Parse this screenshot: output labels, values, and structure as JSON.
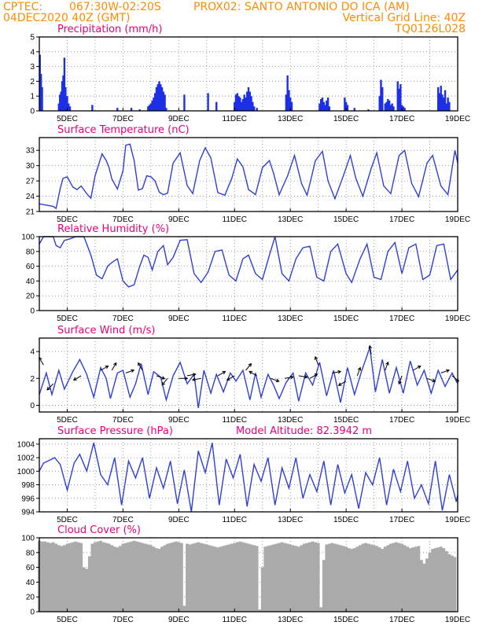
{
  "header": {
    "source": "CPTEC:",
    "coords": "067:30W-02:20S",
    "location": "PROX02: SANTO ANTONIO DO ICA (AM)",
    "run": "04DEC2020 40Z (GMT)",
    "grid_note": "Vertical Grid Line: 40Z",
    "model_code": "TQ0126L028",
    "model_altitude": "Model Altitude: 82.3942 m"
  },
  "x_axis": {
    "ticks": [
      {
        "label": "5DEC",
        "day": 5
      },
      {
        "label": "7DEC",
        "day": 7
      },
      {
        "label": "9DEC",
        "day": 9
      },
      {
        "label": "11DEC",
        "day": 11
      },
      {
        "label": "13DEC",
        "day": 13
      },
      {
        "label": "15DEC",
        "day": 15
      },
      {
        "label": "17DEC",
        "day": 17
      },
      {
        "label": "19DEC",
        "day": 19
      }
    ],
    "xlim": [
      4.0,
      19.0
    ]
  },
  "chart_data": [
    {
      "type": "bar",
      "title": "Precipitation (mm/h)",
      "color": "#1c2ee6",
      "ylim": [
        0,
        5
      ],
      "yticks": [
        0,
        1,
        2,
        3,
        4,
        5
      ],
      "grid": true,
      "x": [
        4.02,
        4.06,
        4.1,
        4.7,
        4.74,
        4.78,
        4.82,
        4.86,
        4.9,
        4.94,
        5.0,
        5.05,
        5.1,
        5.9,
        6.8,
        7.3,
        7.6,
        7.9,
        7.95,
        8.0,
        8.05,
        8.1,
        8.15,
        8.2,
        8.25,
        8.3,
        8.35,
        8.4,
        8.45,
        8.5,
        8.55,
        9.2,
        10.05,
        10.35,
        11.0,
        11.05,
        11.1,
        11.15,
        11.2,
        11.25,
        11.3,
        11.35,
        11.4,
        11.45,
        11.5,
        11.55,
        11.6,
        11.65,
        11.7,
        11.8,
        12.85,
        12.9,
        12.95,
        13.0,
        13.05,
        14.05,
        14.1,
        14.15,
        14.2,
        14.25,
        14.3,
        14.35,
        14.4,
        14.95,
        15.0,
        15.05,
        15.3,
        15.8,
        16.2,
        16.25,
        16.3,
        16.4,
        16.45,
        16.5,
        16.55,
        16.6,
        16.65,
        16.7,
        16.85,
        16.9,
        16.95,
        17.0,
        17.05,
        17.1,
        18.3,
        18.35,
        18.4,
        18.45,
        18.5,
        18.55,
        18.6,
        18.65,
        18.7
      ],
      "values": [
        3.8,
        2.5,
        1.6,
        0.5,
        1.1,
        1.3,
        2.0,
        2.4,
        3.6,
        1.6,
        1.0,
        0.5,
        0.3,
        0.4,
        0.2,
        0.2,
        0.1,
        0.3,
        0.4,
        0.5,
        0.7,
        0.9,
        1.2,
        1.6,
        1.8,
        2.0,
        1.8,
        1.6,
        1.3,
        1.1,
        0.2,
        1.1,
        1.2,
        0.6,
        0.6,
        1.1,
        1.2,
        1.0,
        0.9,
        0.6,
        0.8,
        1.1,
        0.9,
        1.3,
        1.6,
        1.3,
        1.0,
        0.6,
        0.3,
        0.2,
        1.1,
        2.4,
        1.4,
        0.9,
        0.6,
        0.5,
        0.8,
        0.9,
        0.6,
        0.4,
        0.7,
        0.9,
        0.3,
        0.9,
        0.6,
        0.4,
        0.2,
        0.1,
        1.0,
        2.1,
        1.6,
        0.5,
        0.6,
        0.8,
        0.7,
        0.4,
        0.5,
        0.3,
        2.0,
        1.5,
        1.8,
        0.4,
        0.3,
        0.2,
        1.6,
        1.2,
        1.7,
        1.1,
        0.9,
        1.4,
        0.5,
        0.9,
        0.6
      ]
    },
    {
      "type": "line",
      "title": "Surface Temperature (nC)",
      "color": "#2e3fd6",
      "ylim": [
        21,
        35.5
      ],
      "yticks": [
        21,
        24,
        27,
        30,
        33
      ],
      "grid": true,
      "x": [
        4.0,
        4.3,
        4.5,
        4.6,
        4.75,
        4.85,
        5.0,
        5.2,
        5.35,
        5.5,
        5.7,
        5.85,
        6.0,
        6.25,
        6.4,
        6.5,
        6.6,
        6.8,
        7.0,
        7.1,
        7.25,
        7.4,
        7.55,
        7.7,
        7.85,
        8.0,
        8.15,
        8.3,
        8.45,
        8.6,
        8.8,
        9.05,
        9.3,
        9.5,
        9.75,
        9.95,
        10.15,
        10.4,
        10.65,
        10.9,
        11.1,
        11.3,
        11.5,
        11.75,
        12.0,
        12.25,
        12.4,
        12.6,
        12.9,
        13.15,
        13.4,
        13.6,
        13.9,
        14.15,
        14.35,
        14.6,
        14.9,
        15.15,
        15.35,
        15.6,
        15.9,
        16.1,
        16.35,
        16.6,
        16.9,
        17.1,
        17.35,
        17.6,
        17.9,
        18.1,
        18.4,
        18.65,
        18.9,
        19.0
      ],
      "values": [
        22.5,
        22.2,
        22.0,
        21.6,
        25.5,
        27.5,
        27.8,
        25.8,
        25.3,
        26.0,
        24.5,
        23.6,
        28.0,
        32.3,
        31.0,
        29.6,
        27.4,
        25.4,
        29.0,
        34.0,
        34.2,
        31.0,
        25.2,
        25.5,
        28.0,
        27.8,
        27.0,
        24.8,
        24.3,
        24.6,
        30.5,
        32.5,
        26.1,
        24.5,
        31.0,
        33.5,
        31.5,
        24.7,
        24.2,
        27.5,
        31.3,
        29.8,
        25.3,
        24.3,
        29.6,
        31.0,
        28.5,
        24.3,
        28.0,
        32.0,
        26.5,
        24.2,
        31.0,
        32.8,
        27.0,
        23.5,
        28.0,
        32.0,
        27.5,
        24.0,
        29.5,
        32.5,
        26.0,
        24.5,
        32.0,
        33.0,
        26.5,
        23.9,
        30.5,
        32.0,
        26.0,
        24.3,
        33.0,
        30.5
      ]
    },
    {
      "type": "line",
      "title": "Relative Humidity (%)",
      "color": "#2e3fd6",
      "ylim": [
        0,
        100
      ],
      "yticks": [
        0,
        20,
        40,
        60,
        80,
        100
      ],
      "grid": true,
      "x": [
        4.0,
        4.15,
        4.3,
        4.5,
        4.6,
        4.75,
        4.9,
        5.1,
        5.3,
        5.6,
        5.85,
        6.05,
        6.25,
        6.45,
        6.6,
        6.8,
        7.0,
        7.2,
        7.4,
        7.6,
        7.75,
        7.9,
        8.05,
        8.25,
        8.45,
        8.6,
        8.8,
        9.05,
        9.3,
        9.55,
        9.8,
        10.05,
        10.3,
        10.55,
        10.8,
        11.05,
        11.3,
        11.5,
        11.75,
        12.0,
        12.25,
        12.45,
        12.7,
        12.95,
        13.2,
        13.45,
        13.7,
        13.95,
        14.2,
        14.45,
        14.7,
        15.0,
        15.2,
        15.5,
        15.75,
        16.0,
        16.25,
        16.5,
        16.75,
        17.0,
        17.25,
        17.5,
        17.75,
        18.0,
        18.25,
        18.5,
        18.75,
        19.0
      ],
      "values": [
        90,
        100,
        100,
        100,
        88,
        85,
        95,
        97,
        100,
        100,
        75,
        48,
        43,
        60,
        65,
        70,
        40,
        32,
        35,
        60,
        75,
        72,
        55,
        80,
        88,
        62,
        72,
        95,
        96,
        50,
        38,
        52,
        80,
        82,
        48,
        40,
        70,
        75,
        50,
        42,
        75,
        100,
        50,
        40,
        70,
        85,
        87,
        45,
        40,
        80,
        90,
        50,
        38,
        70,
        90,
        45,
        42,
        80,
        92,
        50,
        85,
        90,
        42,
        48,
        88,
        90,
        42,
        55
      ]
    },
    {
      "type": "line",
      "title": "Surface Wind (m/s)",
      "color": "#2e3fd6",
      "ylim": [
        -0.5,
        5
      ],
      "yticks": [
        0,
        2,
        4
      ],
      "grid": true,
      "x": [
        4.0,
        4.25,
        4.45,
        4.7,
        4.9,
        5.2,
        5.45,
        5.7,
        5.95,
        6.2,
        6.4,
        6.55,
        6.8,
        7.0,
        7.25,
        7.45,
        7.65,
        7.9,
        8.1,
        8.35,
        8.55,
        8.8,
        9.05,
        9.3,
        9.55,
        9.7,
        9.9,
        10.15,
        10.35,
        10.6,
        10.85,
        11.05,
        11.3,
        11.55,
        11.75,
        11.95,
        12.2,
        12.4,
        12.6,
        12.85,
        13.1,
        13.3,
        13.55,
        13.8,
        14.05,
        14.3,
        14.55,
        14.8,
        15.05,
        15.3,
        15.55,
        15.85,
        16.05,
        16.3,
        16.55,
        16.8,
        17.05,
        17.3,
        17.55,
        17.8,
        18.05,
        18.3,
        18.55,
        18.8,
        19.0
      ],
      "values": [
        0.8,
        2.4,
        0.8,
        2.6,
        1.2,
        2.5,
        3.4,
        2.3,
        0.6,
        2.8,
        2.0,
        0.5,
        2.4,
        2.6,
        0.6,
        1.6,
        3.1,
        0.8,
        2.5,
        2.1,
        0.4,
        2.2,
        3.2,
        1.6,
        2.3,
        -0.2,
        2.6,
        0.9,
        2.3,
        1.0,
        2.4,
        1.8,
        2.6,
        0.4,
        2.4,
        0.6,
        2.3,
        1.5,
        0.5,
        1.7,
        2.4,
        0.3,
        2.4,
        1.5,
        3.2,
        0.7,
        2.6,
        0.2,
        2.8,
        0.8,
        2.5,
        4.3,
        1.0,
        3.4,
        0.9,
        2.8,
        0.9,
        3.3,
        1.5,
        2.6,
        0.9,
        2.6,
        1.4,
        2.4,
        1.6
      ],
      "vectors": [
        {
          "x": 4.15,
          "speed": 3.0,
          "to_deg": 330
        },
        {
          "x": 4.5,
          "speed": 1.6,
          "to_deg": 225
        },
        {
          "x": 5.5,
          "speed": 2.2,
          "to_deg": 240
        },
        {
          "x": 6.2,
          "speed": 2.6,
          "to_deg": 60
        },
        {
          "x": 6.6,
          "speed": 2.6,
          "to_deg": 30
        },
        {
          "x": 7.1,
          "speed": 2.4,
          "to_deg": 70
        },
        {
          "x": 7.7,
          "speed": 2.6,
          "to_deg": 330
        },
        {
          "x": 8.2,
          "speed": 2.2,
          "to_deg": 110
        },
        {
          "x": 8.6,
          "speed": 2.0,
          "to_deg": 220
        },
        {
          "x": 9.0,
          "speed": 2.0,
          "to_deg": 90
        },
        {
          "x": 9.3,
          "speed": 2.2,
          "to_deg": 80
        },
        {
          "x": 9.8,
          "speed": 2.0,
          "to_deg": 260
        },
        {
          "x": 10.4,
          "speed": 2.2,
          "to_deg": 60
        },
        {
          "x": 11.0,
          "speed": 2.2,
          "to_deg": 240
        },
        {
          "x": 11.4,
          "speed": 2.6,
          "to_deg": 40
        },
        {
          "x": 11.8,
          "speed": 2.2,
          "to_deg": 300
        },
        {
          "x": 12.3,
          "speed": 2.0,
          "to_deg": 110
        },
        {
          "x": 12.8,
          "speed": 2.0,
          "to_deg": 80
        },
        {
          "x": 13.3,
          "speed": 2.2,
          "to_deg": 100
        },
        {
          "x": 13.7,
          "speed": 2.0,
          "to_deg": 60
        },
        {
          "x": 14.0,
          "speed": 3.0,
          "to_deg": 340
        },
        {
          "x": 14.5,
          "speed": 2.4,
          "to_deg": 80
        },
        {
          "x": 15.0,
          "speed": 1.8,
          "to_deg": 240
        },
        {
          "x": 15.4,
          "speed": 2.2,
          "to_deg": 20
        },
        {
          "x": 15.9,
          "speed": 3.8,
          "to_deg": 350
        },
        {
          "x": 16.4,
          "speed": 2.6,
          "to_deg": 20
        },
        {
          "x": 17.0,
          "speed": 2.2,
          "to_deg": 200
        },
        {
          "x": 17.4,
          "speed": 2.6,
          "to_deg": 60
        },
        {
          "x": 17.9,
          "speed": 2.0,
          "to_deg": 110
        },
        {
          "x": 18.4,
          "speed": 2.4,
          "to_deg": 70
        },
        {
          "x": 18.8,
          "speed": 2.2,
          "to_deg": 130
        }
      ]
    },
    {
      "type": "line",
      "title": "Surface Pressure (hPa)",
      "color": "#2e3fd6",
      "ylim": [
        994,
        1004.8
      ],
      "yticks": [
        994,
        996,
        998,
        1000,
        1002,
        1004
      ],
      "grid": true,
      "x": [
        4.0,
        4.15,
        4.35,
        4.55,
        4.75,
        5.0,
        5.25,
        5.45,
        5.7,
        5.95,
        6.2,
        6.45,
        6.7,
        6.95,
        7.2,
        7.45,
        7.7,
        7.95,
        8.2,
        8.45,
        8.7,
        8.95,
        9.2,
        9.45,
        9.7,
        9.95,
        10.2,
        10.45,
        10.7,
        10.95,
        11.2,
        11.45,
        11.7,
        11.95,
        12.2,
        12.45,
        12.7,
        12.95,
        13.2,
        13.45,
        13.7,
        13.95,
        14.2,
        14.45,
        14.7,
        14.95,
        15.2,
        15.45,
        15.7,
        15.95,
        16.2,
        16.45,
        16.7,
        16.95,
        17.2,
        17.45,
        17.7,
        17.95,
        18.2,
        18.45,
        18.7,
        18.95,
        19.0
      ],
      "values": [
        1000.0,
        1001.2,
        1001.6,
        1002.0,
        1001.0,
        997.2,
        1001.2,
        1002.5,
        1000.0,
        1004.2,
        999.5,
        998.0,
        1002.0,
        995.0,
        1001.5,
        999.0,
        1002.0,
        996.0,
        1000.5,
        997.5,
        1001.5,
        995.2,
        1000.2,
        994.0,
        1003.0,
        999.8,
        1004.2,
        995.0,
        1001.8,
        999.0,
        1002.5,
        994.8,
        1001.0,
        998.5,
        1002.0,
        995.0,
        1000.5,
        997.5,
        1002.0,
        996.0,
        999.5,
        997.0,
        1001.5,
        995.0,
        1001.0,
        996.8,
        999.5,
        994.5,
        999.8,
        998.0,
        1002.0,
        995.0,
        1000.3,
        997.0,
        1001.5,
        996.0,
        998.0,
        995.2,
        1001.5,
        994.2,
        999.5,
        995.5,
        996.5
      ]
    },
    {
      "type": "bar",
      "title": "Cloud Cover (%)",
      "color": "#aaaaaa",
      "ylim": [
        0,
        100
      ],
      "yticks": [
        0,
        20,
        40,
        60,
        80,
        100
      ],
      "grid": true,
      "x": [
        4.0,
        4.1,
        4.2,
        4.3,
        4.4,
        4.5,
        4.6,
        4.7,
        4.8,
        4.9,
        5.0,
        5.1,
        5.2,
        5.3,
        5.4,
        5.5,
        5.6,
        5.7,
        5.8,
        5.9,
        6.0,
        6.1,
        6.2,
        6.3,
        6.4,
        6.5,
        6.6,
        6.7,
        6.8,
        6.9,
        7.0,
        7.1,
        7.2,
        7.3,
        7.4,
        7.5,
        7.6,
        7.7,
        7.8,
        7.9,
        8.0,
        8.1,
        8.2,
        8.3,
        8.4,
        8.5,
        8.6,
        8.7,
        8.8,
        8.9,
        9.0,
        9.1,
        9.2,
        9.3,
        9.4,
        9.5,
        9.6,
        9.7,
        9.8,
        9.9,
        10.0,
        10.1,
        10.2,
        10.3,
        10.4,
        10.5,
        10.6,
        10.7,
        10.8,
        10.9,
        11.0,
        11.1,
        11.2,
        11.3,
        11.4,
        11.5,
        11.6,
        11.7,
        11.8,
        11.9,
        12.0,
        12.1,
        12.2,
        12.3,
        12.4,
        12.5,
        12.6,
        12.7,
        12.8,
        12.9,
        13.0,
        13.1,
        13.2,
        13.3,
        13.4,
        13.5,
        13.6,
        13.7,
        13.8,
        13.9,
        14.0,
        14.1,
        14.2,
        14.3,
        14.4,
        14.5,
        14.6,
        14.7,
        14.8,
        14.9,
        15.0,
        15.1,
        15.2,
        15.3,
        15.4,
        15.5,
        15.6,
        15.7,
        15.8,
        15.9,
        16.0,
        16.1,
        16.2,
        16.3,
        16.4,
        16.5,
        16.6,
        16.7,
        16.8,
        16.9,
        17.0,
        17.1,
        17.2,
        17.3,
        17.4,
        17.5,
        17.6,
        17.7,
        17.8,
        17.9,
        18.0,
        18.1,
        18.2,
        18.3,
        18.4,
        18.5,
        18.6,
        18.7,
        18.8,
        18.9
      ],
      "values": [
        96,
        95,
        95,
        94,
        93,
        94,
        92,
        90,
        89,
        90,
        92,
        93,
        94,
        95,
        94,
        93,
        60,
        58,
        75,
        92,
        94,
        95,
        96,
        94,
        93,
        92,
        90,
        88,
        87,
        89,
        92,
        93,
        94,
        95,
        96,
        95,
        94,
        93,
        92,
        91,
        90,
        88,
        86,
        85,
        88,
        90,
        92,
        93,
        94,
        95,
        94,
        93,
        8,
        92,
        91,
        92,
        93,
        94,
        93,
        92,
        91,
        90,
        89,
        88,
        87,
        88,
        89,
        90,
        91,
        92,
        93,
        94,
        95,
        94,
        93,
        92,
        91,
        90,
        89,
        3,
        60,
        88,
        89,
        90,
        91,
        92,
        93,
        94,
        93,
        92,
        91,
        90,
        89,
        88,
        90,
        92,
        93,
        94,
        95,
        94,
        93,
        6,
        70,
        91,
        92,
        93,
        92,
        91,
        90,
        89,
        88,
        86,
        85,
        86,
        88,
        90,
        92,
        93,
        92,
        91,
        90,
        89,
        87,
        85,
        88,
        90,
        92,
        93,
        94,
        93,
        92,
        90,
        88,
        86,
        87,
        88,
        89,
        70,
        65,
        72,
        80,
        85,
        86,
        87,
        88,
        86,
        82,
        78,
        76,
        74
      ]
    }
  ]
}
